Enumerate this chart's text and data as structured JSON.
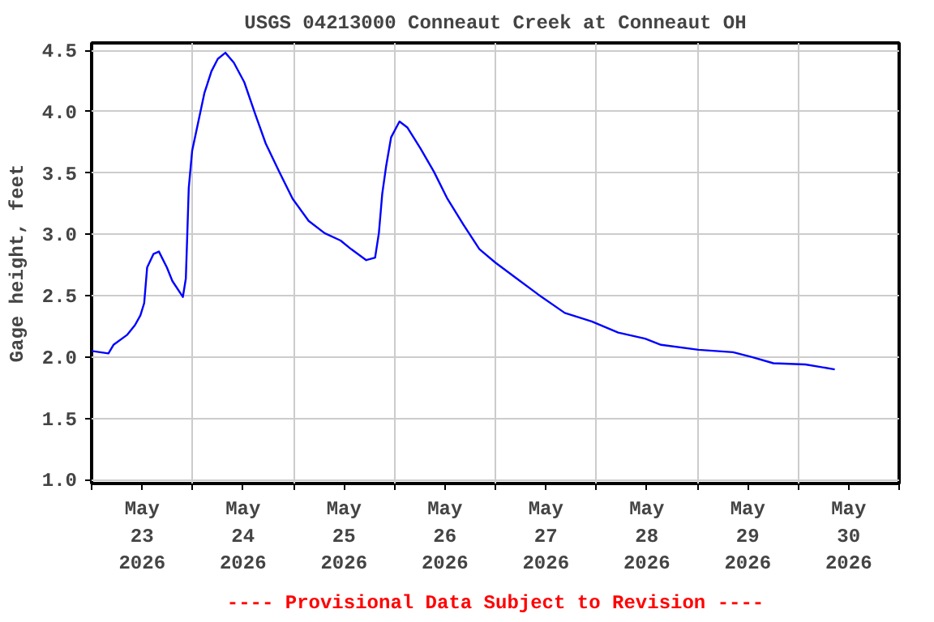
{
  "chart_data": {
    "type": "line",
    "title": "USGS 04213000 Conneaut Creek at Conneaut OH",
    "ylabel": "Gage height, feet",
    "annotations": [
      "---- Provisional Data Subject to Revision ----"
    ],
    "x": [
      "2026-05-23T00:00",
      "2026-05-23T04:00",
      "2026-05-23T05:12",
      "2026-05-23T08:24",
      "2026-05-23T10:18",
      "2026-05-23T11:36",
      "2026-05-23T12:30",
      "2026-05-23T13:12",
      "2026-05-23T14:42",
      "2026-05-23T16:00",
      "2026-05-23T17:54",
      "2026-05-23T19:12",
      "2026-05-23T21:42",
      "2026-05-23T22:24",
      "2026-05-23T22:42",
      "2026-05-23T23:06",
      "2026-05-23T23:54",
      "2026-05-24T01:12",
      "2026-05-24T02:48",
      "2026-05-24T04:30",
      "2026-05-24T06:00",
      "2026-05-24T07:48",
      "2026-05-24T09:48",
      "2026-05-24T12:18",
      "2026-05-24T14:54",
      "2026-05-24T17:24",
      "2026-05-24T20:36",
      "2026-05-24T23:48",
      "2026-05-25T03:36",
      "2026-05-25T07:24",
      "2026-05-25T11:12",
      "2026-05-25T13:42",
      "2026-05-25T17:18",
      "2026-05-25T19:24",
      "2026-05-25T20:18",
      "2026-05-25T21:06",
      "2026-05-25T22:00",
      "2026-05-25T23:12",
      "2026-05-26T01:12",
      "2026-05-26T03:06",
      "2026-05-26T06:12",
      "2026-05-26T09:24",
      "2026-05-26T12:36",
      "2026-05-26T16:24",
      "2026-05-26T20:12",
      "2026-05-27T00:00",
      "2026-05-27T05:06",
      "2026-05-27T10:12",
      "2026-05-27T16:30",
      "2026-05-27T22:54",
      "2026-05-28T05:12",
      "2026-05-28T11:36",
      "2026-05-28T15:24",
      "2026-05-29T00:18",
      "2026-05-29T08:30",
      "2026-05-29T13:00",
      "2026-05-29T18:06",
      "2026-05-30T01:42",
      "2026-05-30T08:42"
    ],
    "series": [
      {
        "color": "#0000ff",
        "values": [
          2.05,
          2.03,
          2.1,
          2.18,
          2.26,
          2.34,
          2.44,
          2.73,
          2.84,
          2.86,
          2.73,
          2.62,
          2.49,
          2.64,
          2.95,
          3.38,
          3.68,
          3.89,
          4.15,
          4.33,
          4.43,
          4.48,
          4.4,
          4.24,
          3.98,
          3.74,
          3.51,
          3.29,
          3.11,
          3.01,
          2.95,
          2.88,
          2.79,
          2.81,
          3.01,
          3.33,
          3.55,
          3.79,
          3.92,
          3.87,
          3.7,
          3.51,
          3.29,
          3.08,
          2.88,
          2.77,
          2.64,
          2.51,
          2.36,
          2.29,
          2.2,
          2.15,
          2.1,
          2.06,
          2.04,
          2.0,
          1.95,
          1.94,
          1.9
        ]
      }
    ],
    "xlim": [
      "2026-05-23T00:00",
      "2026-05-31T00:00"
    ],
    "xticks": [
      {
        "value": "2026-05-23T00:00",
        "label": null
      },
      {
        "value": "2026-05-23T12:00",
        "label": "May\n23\n2026"
      },
      {
        "value": "2026-05-24T00:00",
        "label": null
      },
      {
        "value": "2026-05-24T12:00",
        "label": "May\n24\n2026"
      },
      {
        "value": "2026-05-25T00:00",
        "label": null
      },
      {
        "value": "2026-05-25T12:00",
        "label": "May\n25\n2026"
      },
      {
        "value": "2026-05-26T00:00",
        "label": null
      },
      {
        "value": "2026-05-26T12:00",
        "label": "May\n26\n2026"
      },
      {
        "value": "2026-05-27T00:00",
        "label": null
      },
      {
        "value": "2026-05-27T12:00",
        "label": "May\n27\n2026"
      },
      {
        "value": "2026-05-28T00:00",
        "label": null
      },
      {
        "value": "2026-05-28T12:00",
        "label": "May\n28\n2026"
      },
      {
        "value": "2026-05-29T00:00",
        "label": null
      },
      {
        "value": "2026-05-29T12:00",
        "label": "May\n29\n2026"
      },
      {
        "value": "2026-05-30T00:00",
        "label": null
      },
      {
        "value": "2026-05-30T12:00",
        "label": "May\n30\n2026"
      },
      {
        "value": "2026-05-31T00:00",
        "label": null
      }
    ],
    "ylim": [
      0.97,
      4.56
    ],
    "yticks": [
      {
        "value": 1.0,
        "label": "1.0"
      },
      {
        "value": 1.5,
        "label": "1.5"
      },
      {
        "value": 2.0,
        "label": "2.0"
      },
      {
        "value": 2.5,
        "label": "2.5"
      },
      {
        "value": 3.0,
        "label": "3.0"
      },
      {
        "value": 3.5,
        "label": "3.5"
      },
      {
        "value": 4.0,
        "label": "4.0"
      },
      {
        "value": 4.5,
        "label": "4.5"
      }
    ],
    "grid": true,
    "line_style": "solid"
  }
}
